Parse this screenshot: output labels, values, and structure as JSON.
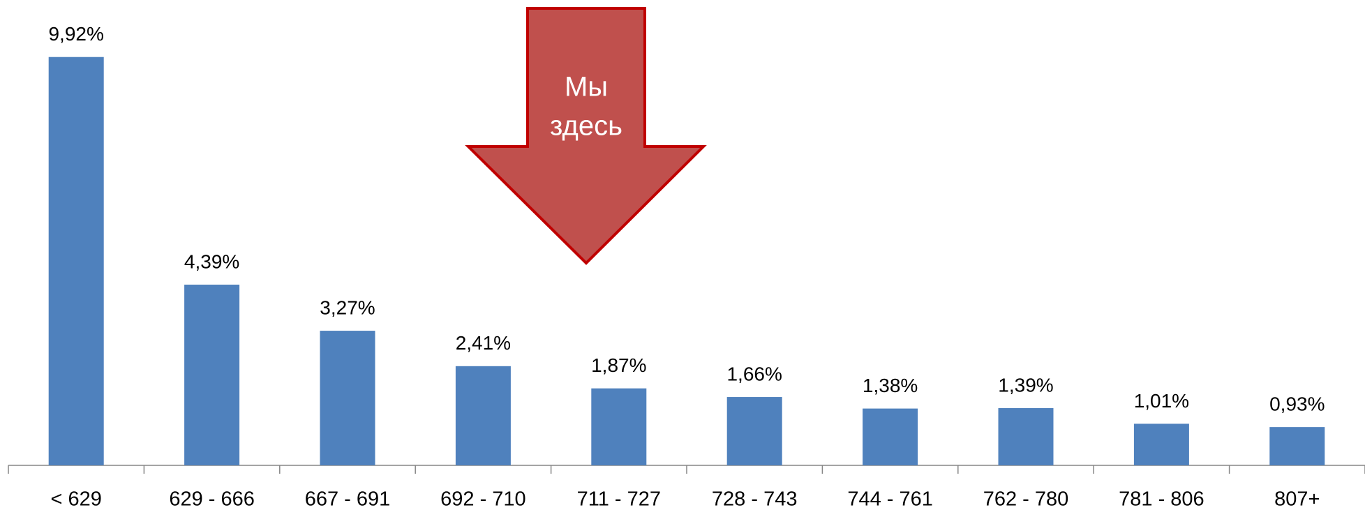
{
  "chart_data": {
    "type": "bar",
    "categories": [
      "< 629",
      "629 - 666",
      "667 - 691",
      "692 - 710",
      "711 - 727",
      "728 - 743",
      "744 - 761",
      "762 - 780",
      "781 - 806",
      "807+"
    ],
    "values": [
      9.92,
      4.39,
      3.27,
      2.41,
      1.87,
      1.66,
      1.38,
      1.39,
      1.01,
      0.93
    ],
    "value_labels": [
      "9,92%",
      "4,39%",
      "3,27%",
      "2,41%",
      "1,87%",
      "1,66%",
      "1,38%",
      "1,39%",
      "1,01%",
      "0,93%"
    ],
    "color": "#4f81bd",
    "ylim": [
      0,
      10
    ],
    "annotation": {
      "lines": [
        "Мы",
        "здесь"
      ],
      "color": "#c0504d",
      "border_color": "#c00000"
    }
  }
}
